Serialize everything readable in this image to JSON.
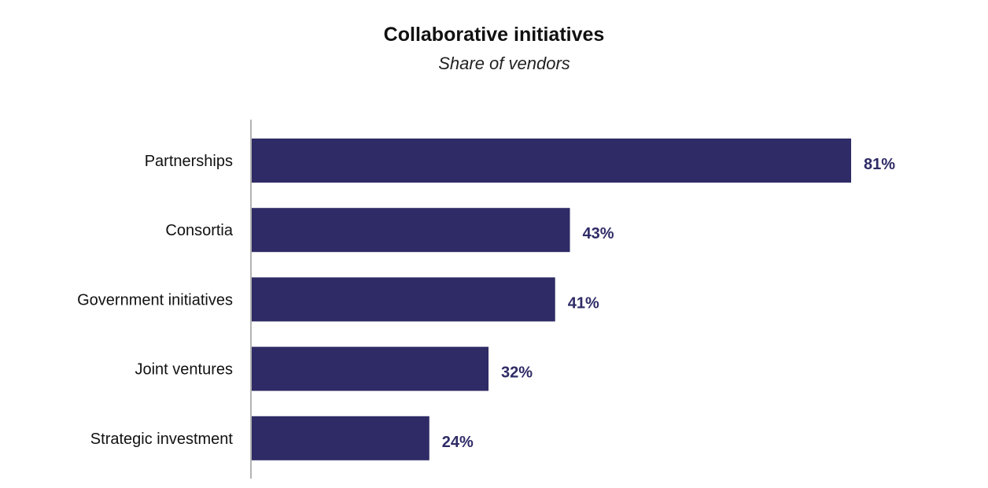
{
  "chart_data": {
    "type": "bar",
    "orientation": "horizontal",
    "title": "Collaborative initiatives",
    "subtitle": "Share of vendors",
    "categories": [
      "Partnerships",
      "Consortia",
      "Government initiatives",
      "Joint ventures",
      "Strategic investment"
    ],
    "values": [
      81,
      43,
      41,
      32,
      24
    ],
    "value_labels": [
      "81%",
      "43%",
      "41%",
      "32%",
      "24%"
    ],
    "xlim": [
      0,
      100
    ],
    "grid": false,
    "legend": "none",
    "bar_color": "#2e2b66",
    "label_color": "#2e2b66"
  }
}
